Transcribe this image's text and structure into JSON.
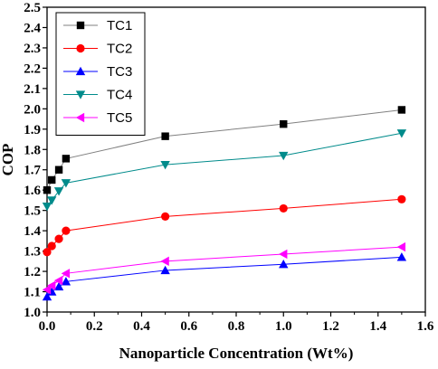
{
  "chart_data": {
    "type": "line",
    "title": "",
    "xlabel": "Nanoparticle Concentration (Wt%)",
    "ylabel": "COP",
    "xlim": [
      0.0,
      1.6
    ],
    "ylim": [
      1.0,
      2.5
    ],
    "x_ticks": [
      "0.0",
      "0.2",
      "0.4",
      "0.6",
      "0.8",
      "1.0",
      "1.2",
      "1.4",
      "1.6"
    ],
    "y_ticks": [
      "1.0",
      "1.1",
      "1.2",
      "1.3",
      "1.4",
      "1.5",
      "1.6",
      "1.7",
      "1.8",
      "1.9",
      "2.0",
      "2.1",
      "2.2",
      "2.3",
      "2.4",
      "2.5"
    ],
    "grid": false,
    "legend_position": "top-left",
    "series": [
      {
        "name": "TC1",
        "color": "#808080",
        "marker_color": "#000000",
        "marker": "square",
        "points": [
          [
            0.0,
            1.6
          ],
          [
            0.02,
            1.65
          ],
          [
            0.05,
            1.7
          ],
          [
            0.08,
            1.755
          ],
          [
            0.5,
            1.865
          ],
          [
            1.0,
            1.925
          ],
          [
            1.5,
            1.995
          ]
        ]
      },
      {
        "name": "TC2",
        "color": "#ff0000",
        "marker_color": "#ff0000",
        "marker": "circle",
        "points": [
          [
            0.0,
            1.295
          ],
          [
            0.02,
            1.325
          ],
          [
            0.05,
            1.36
          ],
          [
            0.08,
            1.4
          ],
          [
            0.5,
            1.47
          ],
          [
            1.0,
            1.51
          ],
          [
            1.5,
            1.555
          ]
        ]
      },
      {
        "name": "TC3",
        "color": "#0000ff",
        "marker_color": "#0000ff",
        "marker": "triangle-up",
        "points": [
          [
            0.0,
            1.075
          ],
          [
            0.02,
            1.1
          ],
          [
            0.05,
            1.125
          ],
          [
            0.08,
            1.15
          ],
          [
            0.5,
            1.205
          ],
          [
            1.0,
            1.235
          ],
          [
            1.5,
            1.27
          ]
        ]
      },
      {
        "name": "TC4",
        "color": "#008b8b",
        "marker_color": "#008b8b",
        "marker": "triangle-down",
        "points": [
          [
            0.0,
            1.52
          ],
          [
            0.02,
            1.55
          ],
          [
            0.05,
            1.595
          ],
          [
            0.08,
            1.635
          ],
          [
            0.5,
            1.725
          ],
          [
            1.0,
            1.77
          ],
          [
            1.5,
            1.88
          ]
        ]
      },
      {
        "name": "TC5",
        "color": "#ff00ff",
        "marker_color": "#ff00ff",
        "marker": "triangle-left",
        "points": [
          [
            0.0,
            1.11
          ],
          [
            0.02,
            1.13
          ],
          [
            0.05,
            1.155
          ],
          [
            0.08,
            1.19
          ],
          [
            0.5,
            1.25
          ],
          [
            1.0,
            1.285
          ],
          [
            1.5,
            1.32
          ]
        ]
      }
    ]
  }
}
